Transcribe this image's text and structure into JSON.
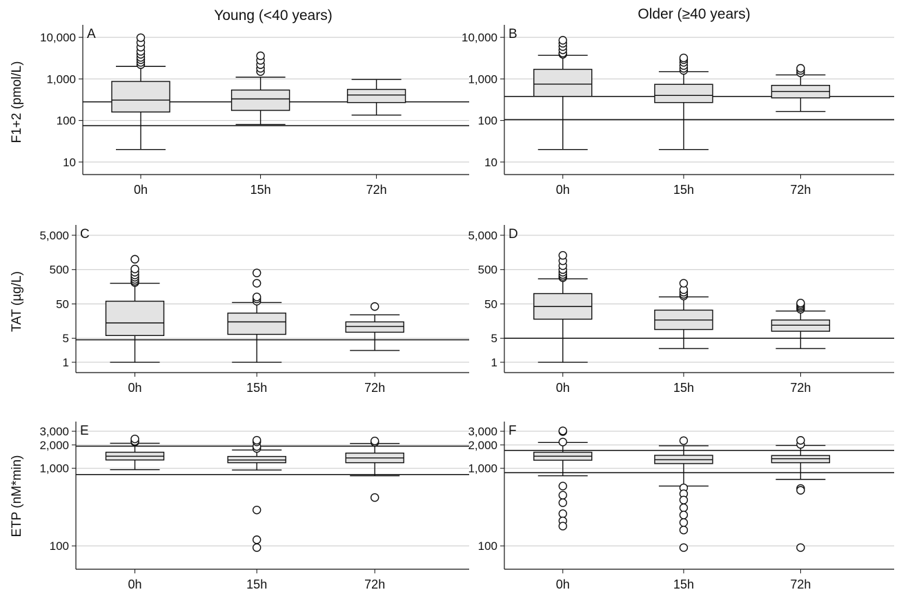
{
  "column_titles": [
    "Young (<40 years)",
    "Older (≥40 years)"
  ],
  "row_ylabels": [
    "F1+2 (pmol/L)",
    "TAT (µg/L)",
    "ETP (nM*min)"
  ],
  "colors": {
    "box_fill": "#e3e3e3",
    "line": "#111111",
    "grid": "#c8c8c8"
  },
  "chart_data": [
    {
      "panel": "A",
      "type": "boxplot",
      "scale": "log",
      "ylabel": "F1+2 (pmol/L)",
      "categories": [
        "0h",
        "15h",
        "72h"
      ],
      "yticks": [
        10,
        100,
        1000,
        10000
      ],
      "ytick_labels": [
        "10",
        "100",
        "1,000",
        "10,000"
      ],
      "ylim": [
        5,
        20000
      ],
      "reference_lines": [
        75,
        280
      ],
      "boxes": [
        {
          "category": "0h",
          "min": 20,
          "q1": 160,
          "median": 310,
          "q3": 870,
          "max": 2000,
          "outliers": [
            2200,
            2500,
            2900,
            3300,
            3900,
            4600,
            5800,
            7500,
            9800
          ]
        },
        {
          "category": "15h",
          "min": 80,
          "q1": 175,
          "median": 330,
          "q3": 540,
          "max": 1100,
          "outliers": [
            1500,
            1800,
            2200,
            2800,
            3600
          ]
        },
        {
          "category": "72h",
          "min": 135,
          "q1": 270,
          "median": 410,
          "q3": 560,
          "max": 970,
          "outliers": []
        }
      ]
    },
    {
      "panel": "B",
      "type": "boxplot",
      "scale": "log",
      "ylabel": "",
      "categories": [
        "0h",
        "15h",
        "72h"
      ],
      "yticks": [
        10,
        100,
        1000,
        10000
      ],
      "ytick_labels": [
        "10",
        "100",
        "1,000",
        "10,000"
      ],
      "ylim": [
        5,
        20000
      ],
      "reference_lines": [
        105,
        380
      ],
      "boxes": [
        {
          "category": "0h",
          "min": 20,
          "q1": 380,
          "median": 750,
          "q3": 1700,
          "max": 3700,
          "outliers": [
            3900,
            4200,
            5000,
            6000,
            7200,
            8500
          ]
        },
        {
          "category": "15h",
          "min": 20,
          "q1": 270,
          "median": 400,
          "q3": 740,
          "max": 1500,
          "outliers": [
            1600,
            1800,
            2100,
            2500,
            2900,
            3200
          ]
        },
        {
          "category": "72h",
          "min": 165,
          "q1": 350,
          "median": 500,
          "q3": 700,
          "max": 1250,
          "outliers": [
            1400,
            1600,
            1800
          ]
        }
      ]
    },
    {
      "panel": "C",
      "type": "boxplot",
      "scale": "log",
      "ylabel": "TAT (µg/L)",
      "categories": [
        "0h",
        "15h",
        "72h"
      ],
      "yticks": [
        1,
        5,
        50,
        500,
        5000
      ],
      "ytick_labels": [
        "1",
        "5",
        "50",
        "500",
        "5,000"
      ],
      "ylim": [
        0.5,
        10000
      ],
      "reference_lines": [
        4.5
      ],
      "boxes": [
        {
          "category": "0h",
          "min": 1,
          "q1": 6,
          "median": 14,
          "q3": 60,
          "max": 200,
          "outliers": [
            210,
            230,
            260,
            300,
            350,
            420,
            520,
            1000
          ]
        },
        {
          "category": "15h",
          "min": 1,
          "q1": 6.5,
          "median": 15,
          "q3": 27,
          "max": 55,
          "outliers": [
            60,
            70,
            80,
            200,
            400
          ]
        },
        {
          "category": "72h",
          "min": 2.2,
          "q1": 7.5,
          "median": 11,
          "q3": 15,
          "max": 24,
          "outliers": [
            42
          ]
        }
      ]
    },
    {
      "panel": "D",
      "type": "boxplot",
      "scale": "log",
      "ylabel": "",
      "categories": [
        "0h",
        "15h",
        "72h"
      ],
      "yticks": [
        1,
        5,
        50,
        500,
        5000
      ],
      "ytick_labels": [
        "1",
        "5",
        "50",
        "500",
        "5,000"
      ],
      "ylim": [
        0.5,
        10000
      ],
      "reference_lines": [
        5
      ],
      "boxes": [
        {
          "category": "0h",
          "min": 1,
          "q1": 18,
          "median": 42,
          "q3": 100,
          "max": 270,
          "outliers": [
            290,
            320,
            360,
            420,
            500,
            650,
            900,
            1300
          ]
        },
        {
          "category": "15h",
          "min": 2.5,
          "q1": 9,
          "median": 17,
          "q3": 33,
          "max": 80,
          "outliers": [
            85,
            95,
            110,
            130,
            200
          ]
        },
        {
          "category": "72h",
          "min": 2.5,
          "q1": 8,
          "median": 12,
          "q3": 17,
          "max": 31,
          "outliers": [
            35,
            39,
            43,
            48,
            53
          ]
        }
      ]
    },
    {
      "panel": "E",
      "type": "boxplot",
      "scale": "log",
      "ylabel": "ETP (nM*min)",
      "categories": [
        "0h",
        "15h",
        "72h"
      ],
      "yticks": [
        100,
        1000,
        2000,
        3000
      ],
      "ytick_labels": [
        "100",
        "1,000",
        "2,000",
        "3,000"
      ],
      "ylim": [
        50,
        4000
      ],
      "reference_lines": [
        830,
        1930
      ],
      "boxes": [
        {
          "category": "0h",
          "min": 960,
          "q1": 1280,
          "median": 1430,
          "q3": 1610,
          "max": 2100,
          "outliers": [
            2180,
            2230,
            2390
          ]
        },
        {
          "category": "15h",
          "min": 950,
          "q1": 1180,
          "median": 1280,
          "q3": 1420,
          "max": 1720,
          "outliers": [
            1800,
            1910,
            2190,
            2300,
            290,
            120,
            95
          ]
        },
        {
          "category": "72h",
          "min": 800,
          "q1": 1180,
          "median": 1360,
          "q3": 1570,
          "max": 2090,
          "outliers": [
            2160,
            2250,
            420
          ]
        }
      ]
    },
    {
      "panel": "F",
      "type": "boxplot",
      "scale": "log",
      "ylabel": "",
      "categories": [
        "0h",
        "15h",
        "72h"
      ],
      "yticks": [
        100,
        1000,
        2000,
        3000
      ],
      "ytick_labels": [
        "100",
        "1,000",
        "2,000",
        "3,000"
      ],
      "ylim": [
        50,
        4000
      ],
      "reference_lines": [
        880,
        1700
      ],
      "boxes": [
        {
          "category": "0h",
          "min": 800,
          "q1": 1270,
          "median": 1430,
          "q3": 1610,
          "max": 2150,
          "outliers": [
            2180,
            2970,
            3040,
            590,
            450,
            360,
            260,
            210,
            180
          ]
        },
        {
          "category": "15h",
          "min": 590,
          "q1": 1150,
          "median": 1290,
          "q3": 1470,
          "max": 1950,
          "outliers": [
            2270,
            560,
            470,
            390,
            310,
            250,
            200,
            160,
            95
          ]
        },
        {
          "category": "72h",
          "min": 720,
          "q1": 1180,
          "median": 1330,
          "q3": 1460,
          "max": 1970,
          "outliers": [
            2030,
            2290,
            550,
            520,
            95
          ]
        }
      ]
    }
  ]
}
